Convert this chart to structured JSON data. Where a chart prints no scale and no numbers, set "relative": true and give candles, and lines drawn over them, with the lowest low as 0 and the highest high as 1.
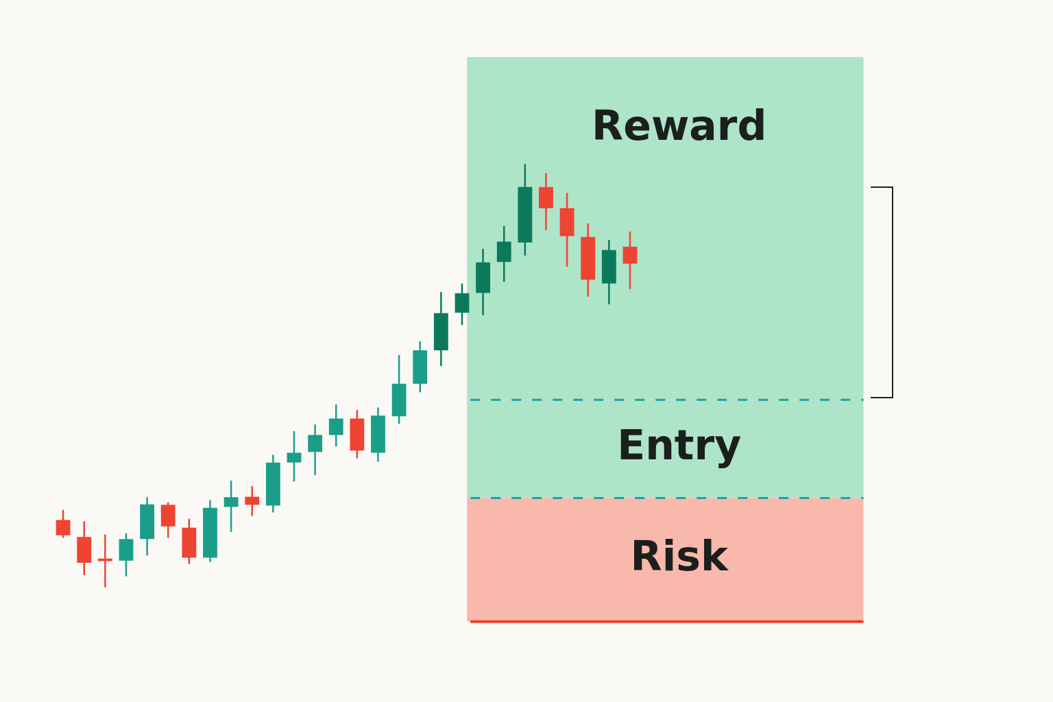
{
  "chart_data": {
    "type": "candlestick",
    "relative": true,
    "categories": [
      null,
      null,
      null,
      null,
      null,
      null,
      null,
      null,
      null,
      null,
      null,
      null,
      null,
      null,
      null,
      null,
      null,
      null,
      null,
      null,
      null,
      null,
      null,
      null,
      null,
      null,
      null,
      null
    ],
    "ohlc": [
      [
        0.159,
        0.183,
        0.117,
        0.123
      ],
      [
        0.119,
        0.156,
        0.029,
        0.058
      ],
      [
        0.068,
        0.125,
        0,
        0.062
      ],
      [
        0.063,
        0.128,
        0.026,
        0.114
      ],
      [
        0.114,
        0.213,
        0.075,
        0.196
      ],
      [
        0.195,
        0.201,
        0.117,
        0.144
      ],
      [
        0.141,
        0.162,
        0.055,
        0.07
      ],
      [
        0.07,
        0.206,
        0.06,
        0.188
      ],
      [
        0.19,
        0.252,
        0.131,
        0.213
      ],
      [
        0.214,
        0.239,
        0.169,
        0.195
      ],
      [
        0.193,
        0.313,
        0.177,
        0.295
      ],
      [
        0.295,
        0.369,
        0.25,
        0.318
      ],
      [
        0.32,
        0.385,
        0.265,
        0.36
      ],
      [
        0.36,
        0.432,
        0.333,
        0.399
      ],
      [
        0.399,
        0.419,
        0.305,
        0.323
      ],
      [
        0.318,
        0.425,
        0.297,
        0.406
      ],
      [
        0.404,
        0.549,
        0.386,
        0.481
      ],
      [
        0.481,
        0.581,
        0.461,
        0.56
      ],
      [
        0.56,
        0.698,
        0.523,
        0.648
      ],
      [
        0.649,
        0.718,
        0.62,
        0.695
      ],
      [
        0.696,
        0.8,
        0.643,
        0.768
      ],
      [
        0.769,
        0.854,
        0.722,
        0.817
      ],
      [
        0.815,
        1,
        0.784,
        0.946
      ],
      [
        0.946,
        0.979,
        0.844,
        0.896
      ],
      [
        0.896,
        0.932,
        0.758,
        0.83
      ],
      [
        0.828,
        0.86,
        0.687,
        0.727
      ],
      [
        0.718,
        0.821,
        0.669,
        0.797
      ],
      [
        0.805,
        0.841,
        0.705,
        0.765
      ]
    ],
    "colors": [
      "#ee4431",
      "#ee4431",
      "#ee4431",
      "#1a9e8a",
      "#1a9e8a",
      "#ee4431",
      "#ee4431",
      "#1a9e8a",
      "#1a9e8a",
      "#ee4431",
      "#1a9e8a",
      "#1a9e8a",
      "#1a9e8a",
      "#1a9e8a",
      "#ee4431",
      "#1a9e8a",
      "#1a9e8a",
      "#1a9e8a",
      "#0b7a5c",
      "#0b7a5c",
      "#0b7a5c",
      "#0b7a5c",
      "#0b7a5c",
      "#ee4431",
      "#ee4431",
      "#ee4431",
      "#0b7a5c",
      "#ee4431"
    ],
    "bands": [
      {
        "axis": "y",
        "from": 0.443,
        "to": 1.253,
        "label": "Reward",
        "color": "#aee4c8"
      },
      {
        "axis": "y",
        "from": 0.211,
        "to": 0.443,
        "label": "Entry",
        "color": "#aee4c8"
      },
      {
        "axis": "y",
        "from": -0.081,
        "to": 0.211,
        "label": "Risk",
        "color": "#f9b8ac"
      }
    ],
    "ref_lines": [
      {
        "axis": "y",
        "value": 0.443,
        "color": "#1aa3a8",
        "line_style": "dashed"
      },
      {
        "axis": "y",
        "value": 0.211,
        "color": "#1aa3a8",
        "line_style": "dashed"
      },
      {
        "axis": "y",
        "value": -0.081,
        "color": "#e8402a",
        "line_style": "solid"
      }
    ]
  }
}
